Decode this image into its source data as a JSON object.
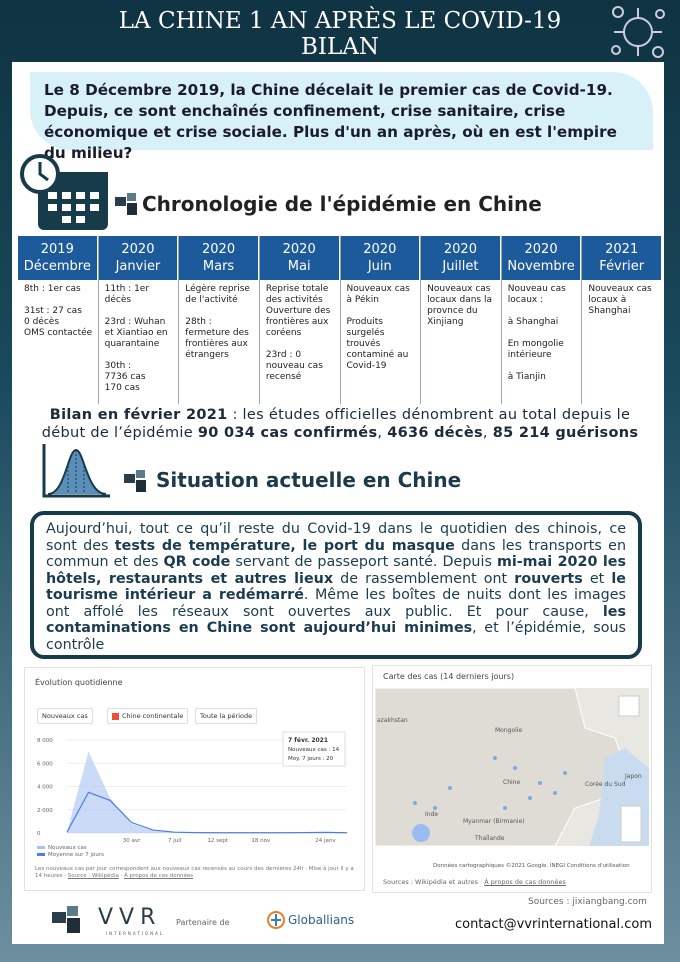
{
  "header": {
    "title_line1": "LA CHINE 1 AN APRÈS LE COVID-19",
    "title_line2": "BILAN"
  },
  "intro": "Le 8 Décembre 2019, la Chine décelait le premier cas de Covid-19. Depuis, ce sont enchaînés confinement, crise sanitaire, crise économique et crise sociale. Plus d'un an après, où en est l'empire du milieu?",
  "chronology": {
    "heading": "Chronologie de l'épidémie en Chine",
    "columns": [
      {
        "year": "2019",
        "month": "Décembre",
        "events": [
          "8th : 1er cas",
          "31st :  27 cas\n0 décès\nOMS contactée"
        ]
      },
      {
        "year": "2020",
        "month": "Janvier",
        "events": [
          "11th : 1er décès",
          "23rd : Wuhan et Xiantiao en quarantaine",
          "30th :\n 7736 cas\n170 cas"
        ]
      },
      {
        "year": "2020",
        "month": "Mars",
        "events": [
          "Légère reprise de l'activité",
          "28th : fermeture des frontières aux étrangers"
        ]
      },
      {
        "year": "2020",
        "month": "Mai",
        "events": [
          "Reprise totale des activités Ouverture des frontières aux coréens",
          "23rd : 0 nouveau cas recensé"
        ]
      },
      {
        "year": "2020",
        "month": "Juin",
        "events": [
          "Nouveaux cas à Pékin",
          "Produits surgelés trouvés contaminé au Covid-19"
        ]
      },
      {
        "year": "2020",
        "month": "Juillet",
        "events": [
          "Nouveaux cas locaux dans la provnce du Xinjiang"
        ]
      },
      {
        "year": "2020",
        "month": "Novembre",
        "events": [
          "Nouveau cas locaux :",
          "à Shanghai",
          "En mongolie intérieure",
          "à Tianjin"
        ]
      },
      {
        "year": "2021",
        "month": "Février",
        "events": [
          "Nouveaux cas locaux à Shanghai"
        ]
      }
    ]
  },
  "summary": [
    {
      "text": "Bilan en février 2021",
      "bold": true
    },
    {
      "text": " : les études officielles dénombrent au total depuis le début de l’épidémie ",
      "bold": false
    },
    {
      "text": "90 034 cas confirmés",
      "bold": true
    },
    {
      "text": ", ",
      "bold": false
    },
    {
      "text": "4636 décès",
      "bold": true
    },
    {
      "text": ", ",
      "bold": false
    },
    {
      "text": "85 214 guérisons",
      "bold": true
    }
  ],
  "situation": {
    "heading": "Situation actuelle en Chine",
    "paragraph": [
      {
        "text": "Aujourd’hui, tout ce qu’il reste du Covid-19 dans le quotidien des chinois, ce sont des ",
        "bold": false
      },
      {
        "text": "tests de température, le port du masque",
        "bold": true
      },
      {
        "text": " dans les transports en commun et des ",
        "bold": false
      },
      {
        "text": "QR code",
        "bold": true
      },
      {
        "text": " servant de passeport santé. Depuis ",
        "bold": false
      },
      {
        "text": "mi-mai 2020 les hôtels, restaurants et autres lieux",
        "bold": true
      },
      {
        "text": " de rassemblement ont ",
        "bold": false
      },
      {
        "text": "rouverts",
        "bold": true
      },
      {
        "text": " et ",
        "bold": false
      },
      {
        "text": "le tourisme intérieur a redémarré",
        "bold": true
      },
      {
        "text": ". Même les boîtes de nuits dont les images ont affolé les réseaux sont ouvertes aux public. Et pour cause, ",
        "bold": false
      },
      {
        "text": "les contaminations en Chine sont aujourd’hui minimes",
        "bold": true
      },
      {
        "text": ", et l’épidémie, sous contrôle",
        "bold": false
      }
    ]
  },
  "daily_chart": {
    "type": "line",
    "title": "Évolution quotidienne",
    "filters": [
      "Nouveaux cas",
      "Chine continentale",
      "Toute la période"
    ],
    "categories": [
      null,
      null,
      null,
      "30 avr",
      null,
      "7 juil",
      null,
      "12 sept",
      null,
      "18 nov",
      null,
      null,
      "24 janv",
      null
    ],
    "series": [
      {
        "name": "Nouveaux cas",
        "color": "#a7c1f2",
        "values": [
          100,
          7000,
          3000,
          800,
          200,
          60,
          30,
          20,
          20,
          20,
          20,
          40,
          60,
          14
        ]
      },
      {
        "name": "Moyenne sur 7 jours",
        "color": "#4a7ee0",
        "values": [
          80,
          3500,
          2800,
          900,
          250,
          70,
          30,
          20,
          20,
          20,
          20,
          35,
          55,
          20
        ]
      }
    ],
    "ylim": [
      0,
      8000
    ],
    "yticks": [
      0,
      {
        "value": 2000,
        "label": "2 000"
      },
      {
        "value": 4000,
        "label": "4 000"
      },
      {
        "value": 6000,
        "label": "6 000"
      },
      {
        "value": 8000,
        "label": "8 000"
      }
    ],
    "tooltip": [
      "7 févr. 2021",
      "Nouveaux cas : 14",
      "Moy. 7 jours : 20"
    ],
    "note": "Les nouveaux cas par jour correspondent aux nouveaux cas recensés au cours des dernières 24h · Mise à jour il y a 14 heures",
    "links": [
      "Source : Wikipédia",
      "À propos de ces données"
    ]
  },
  "map": {
    "title": "Carte des cas (14 derniers jours)",
    "places": [
      "azakhstan",
      "Mongolie",
      "Chine",
      "Corée du Sud",
      "Japon",
      "Inde",
      "Myanmar (Birmanie)",
      "Thaïlande"
    ],
    "credit": "Données cartographiques ©2021 Google, INEGI   Conditions d'utilisation",
    "sources": "Sources : Wikipédia et autres",
    "about": "À propos de cas données"
  },
  "footer": {
    "sources": "Sources : jixiangbang.com",
    "brand": "VVR",
    "brand_sub": "INTERNATIONAL",
    "partner_label": "Partenaire de",
    "partner": "Globallians",
    "contact": "contact@vvrinternational.com"
  }
}
